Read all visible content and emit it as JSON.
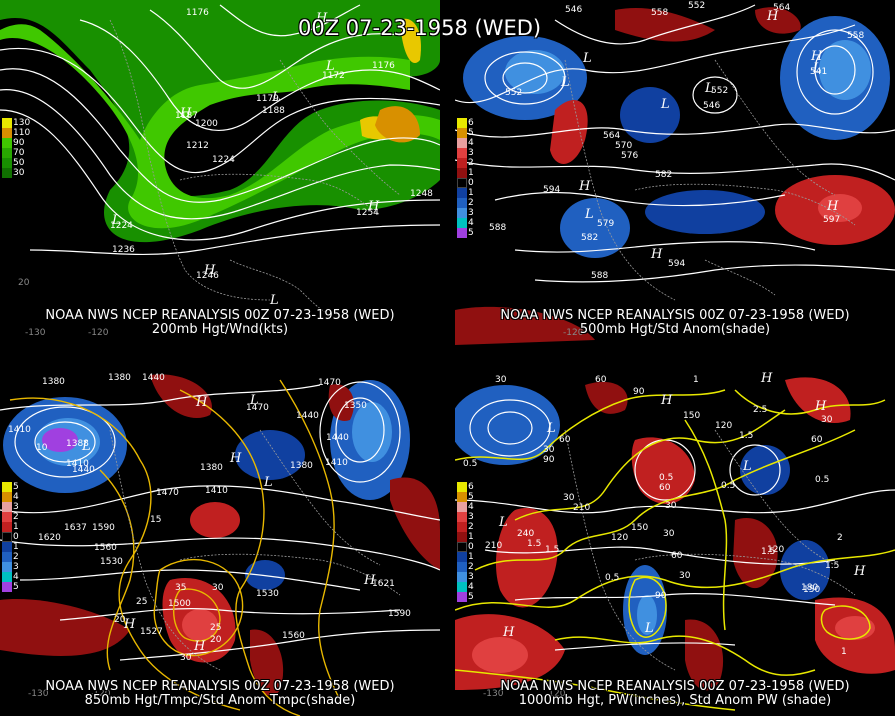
{
  "title": "00Z 07-23-1958 (WED)",
  "panels": [
    {
      "line1": "NOAA NWS NCEP REANALYSIS 00Z 07-23-1958 (WED)",
      "line2": "200mb Hgt/Wnd(kts)",
      "legend": [
        {
          "label": "130",
          "color": "#e8e800"
        },
        {
          "label": "110",
          "color": "#d89000"
        },
        {
          "label": "90",
          "color": "#40c800"
        },
        {
          "label": "70",
          "color": "#28a800"
        },
        {
          "label": "50",
          "color": "#189000"
        },
        {
          "label": "30",
          "color": "#107000"
        }
      ],
      "contour_labels": [
        "1176",
        "1172",
        "1176",
        "1179",
        "1188",
        "1187",
        "1200",
        "1212",
        "1224",
        "1224",
        "1236",
        "1246",
        "1254",
        "1248"
      ],
      "ticks": [
        "-130",
        "-120",
        "20"
      ],
      "centers": [
        "H",
        "L",
        "L",
        "H",
        "L",
        "H",
        "H",
        "L"
      ]
    },
    {
      "line1": "NOAA NWS NCEP REANALYSIS 00Z 07-23-1958 (WED)",
      "line2": "500mb Hgt/Std Anom(shade)",
      "legend": [
        {
          "label": "6",
          "color": "#e8e800"
        },
        {
          "label": "5",
          "color": "#d89000"
        },
        {
          "label": "4",
          "color": "#e8a0a0"
        },
        {
          "label": "3",
          "color": "#e04040"
        },
        {
          "label": "2",
          "color": "#c02020"
        },
        {
          "label": "1",
          "color": "#901010"
        },
        {
          "label": "0",
          "color": "#000000"
        },
        {
          "label": "1",
          "color": "#1040a0"
        },
        {
          "label": "2",
          "color": "#2060c0"
        },
        {
          "label": "3",
          "color": "#4090e0"
        },
        {
          "label": "4",
          "color": "#00c0c0"
        },
        {
          "label": "5",
          "color": "#a040e0"
        }
      ],
      "contour_labels": [
        "546",
        "558",
        "552",
        "564",
        "552",
        "546",
        "552",
        "564",
        "558",
        "570",
        "576",
        "582",
        "588",
        "582",
        "594",
        "588",
        "594",
        "579",
        "597",
        "541"
      ],
      "ticks": [
        "-120"
      ],
      "centers": [
        "H",
        "L",
        "L",
        "L",
        "H",
        "L",
        "H",
        "L",
        "H",
        "L",
        "H"
      ]
    },
    {
      "line1": "NOAA NWS NCEP REANALYSIS 00Z 07-23-1958 (WED)",
      "line2": "850mb Hgt/Tmpc/Std Anom Tmpc(shade)",
      "legend": [
        {
          "label": "5",
          "color": "#e8e800"
        },
        {
          "label": "4",
          "color": "#d89000"
        },
        {
          "label": "3",
          "color": "#e8a0a0"
        },
        {
          "label": "2",
          "color": "#e04040"
        },
        {
          "label": "1",
          "color": "#c02020"
        },
        {
          "label": "0",
          "color": "#000000"
        },
        {
          "label": "1",
          "color": "#1040a0"
        },
        {
          "label": "2",
          "color": "#2060c0"
        },
        {
          "label": "3",
          "color": "#4090e0"
        },
        {
          "label": "4",
          "color": "#00c0c0"
        },
        {
          "label": "5",
          "color": "#a040e0"
        }
      ],
      "contour_labels": [
        "1380",
        "1380",
        "1440",
        "1410",
        "1388",
        "1410",
        "1440",
        "1470",
        "1440",
        "1470",
        "1380",
        "1380",
        "1410",
        "1470",
        "1350",
        "1440",
        "1410",
        "1620",
        "1590",
        "1560",
        "1530",
        "1500",
        "1530",
        "1560",
        "1590",
        "1527",
        "1637",
        "1621",
        "10",
        "15",
        "20",
        "25",
        "30",
        "25",
        "20",
        "35",
        "30"
      ],
      "ticks": [
        "-130",
        "-120"
      ],
      "centers": [
        "H",
        "L",
        "L",
        "H",
        "L",
        "H",
        "H",
        "H"
      ]
    },
    {
      "line1": "NOAA NWS NCEP REANALYSIS 00Z 07-23-1958 (WED)",
      "line2": "1000mb Hgt, PW(inches), Std Anom PW (shade)",
      "legend": [
        {
          "label": "6",
          "color": "#e8e800"
        },
        {
          "label": "5",
          "color": "#d89000"
        },
        {
          "label": "4",
          "color": "#e8a0a0"
        },
        {
          "label": "3",
          "color": "#e04040"
        },
        {
          "label": "2",
          "color": "#c02020"
        },
        {
          "label": "1",
          "color": "#901010"
        },
        {
          "label": "0",
          "color": "#000000"
        },
        {
          "label": "1",
          "color": "#1040a0"
        },
        {
          "label": "2",
          "color": "#2060c0"
        },
        {
          "label": "3",
          "color": "#4090e0"
        },
        {
          "label": "4",
          "color": "#00c0c0"
        },
        {
          "label": "5",
          "color": "#a040e0"
        }
      ],
      "contour_labels": [
        "30",
        "60",
        "90",
        "30",
        "60",
        "90",
        "0.5",
        "30",
        "120",
        "150",
        "1",
        "0.5",
        "60",
        "30",
        "2.5",
        "1.5",
        "0.5",
        "210",
        "240",
        "150",
        "120",
        "30",
        "60",
        "90",
        "30",
        "1.5",
        "0.5",
        "1.5",
        "120",
        "150",
        "1.5",
        "180",
        "2",
        "1",
        "0.5",
        "30",
        "60",
        "210",
        "1.5"
      ],
      "ticks": [
        "-130",
        "-120"
      ],
      "centers": [
        "H",
        "L",
        "H",
        "L",
        "H",
        "L",
        "L",
        "H",
        "H"
      ]
    }
  ]
}
